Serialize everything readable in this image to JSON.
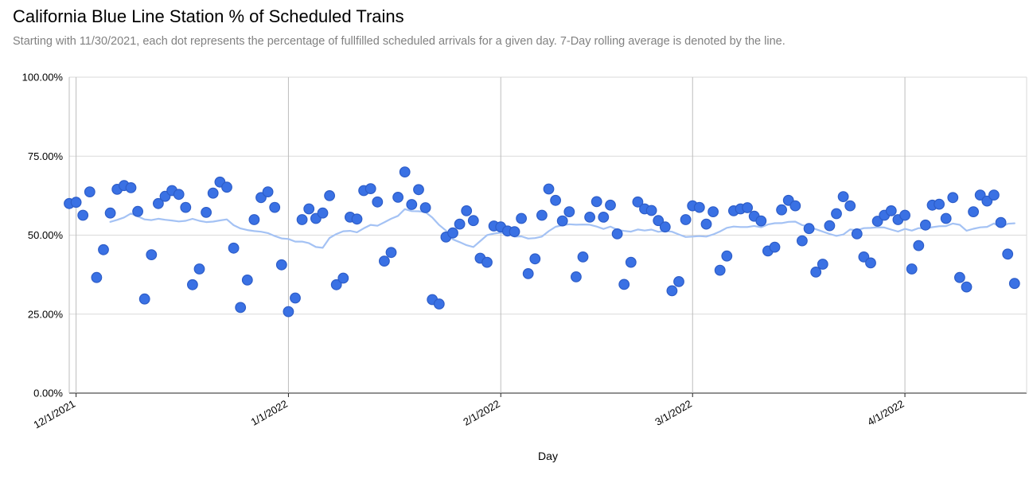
{
  "chart_data": {
    "type": "scatter",
    "title": "California Blue Line Station % of Scheduled Trains",
    "subtitle": "Starting with 11/30/2021, each dot represents the percentage of fullfilled scheduled arrivals for a given day. 7-Day rolling average is denoted by the line.",
    "xlabel": "Day",
    "ylabel": "",
    "ylim": [
      0,
      100
    ],
    "grid": true,
    "legend_position": "none",
    "y_ticks": [
      {
        "label": "0.00%",
        "value": 0
      },
      {
        "label": "25.00%",
        "value": 25
      },
      {
        "label": "50.00%",
        "value": 50
      },
      {
        "label": "75.00%",
        "value": 75
      },
      {
        "label": "100.00%",
        "value": 100
      }
    ],
    "x_ticks": [
      {
        "label": "12/1/2021",
        "day_index": 1
      },
      {
        "label": "1/1/2022",
        "day_index": 32
      },
      {
        "label": "2/1/2022",
        "day_index": 63
      },
      {
        "label": "3/1/2022",
        "day_index": 91
      },
      {
        "label": "4/1/2022",
        "day_index": 122
      }
    ],
    "colors": {
      "dot": "#3A71E4",
      "dot_border": "#2D5DC8",
      "line": "#A4C2F4",
      "gridline": "#DADADA",
      "month_gridline": "#BDBDBD",
      "axis_baseline": "#222222",
      "title": "#000000",
      "subtitle": "#818181",
      "tick_label": "#000000"
    },
    "series": [
      {
        "name": "Daily % of fulfilled scheduled arrivals",
        "type": "scatter",
        "color": "#3A71E4",
        "dot_border": "#2D5DC8",
        "dates": [
          "11/30/2021",
          "12/1/2021",
          "12/2/2021",
          "12/3/2021",
          "12/4/2021",
          "12/5/2021",
          "12/6/2021",
          "12/7/2021",
          "12/8/2021",
          "12/9/2021",
          "12/10/2021",
          "12/11/2021",
          "12/12/2021",
          "12/13/2021",
          "12/14/2021",
          "12/15/2021",
          "12/16/2021",
          "12/17/2021",
          "12/18/2021",
          "12/19/2021",
          "12/20/2021",
          "12/21/2021",
          "12/22/2021",
          "12/23/2021",
          "12/24/2021",
          "12/25/2021",
          "12/26/2021",
          "12/27/2021",
          "12/28/2021",
          "12/29/2021",
          "12/30/2021",
          "12/31/2021",
          "1/1/2022",
          "1/2/2022",
          "1/3/2022",
          "1/4/2022",
          "1/5/2022",
          "1/6/2022",
          "1/7/2022",
          "1/8/2022",
          "1/9/2022",
          "1/10/2022",
          "1/11/2022",
          "1/12/2022",
          "1/13/2022",
          "1/14/2022",
          "1/15/2022",
          "1/16/2022",
          "1/17/2022",
          "1/18/2022",
          "1/19/2022",
          "1/20/2022",
          "1/21/2022",
          "1/22/2022",
          "1/23/2022",
          "1/24/2022",
          "1/25/2022",
          "1/26/2022",
          "1/27/2022",
          "1/28/2022",
          "1/29/2022",
          "1/30/2022",
          "1/31/2022",
          "2/1/2022",
          "2/2/2022",
          "2/3/2022",
          "2/4/2022",
          "2/5/2022",
          "2/6/2022",
          "2/7/2022",
          "2/8/2022",
          "2/9/2022",
          "2/10/2022",
          "2/11/2022",
          "2/12/2022",
          "2/13/2022",
          "2/14/2022",
          "2/15/2022",
          "2/16/2022",
          "2/17/2022",
          "2/18/2022",
          "2/19/2022",
          "2/20/2022",
          "2/21/2022",
          "2/22/2022",
          "2/23/2022",
          "2/24/2022",
          "2/25/2022",
          "2/26/2022",
          "2/27/2022",
          "2/28/2022",
          "3/1/2022",
          "3/2/2022",
          "3/3/2022",
          "3/4/2022",
          "3/5/2022",
          "3/6/2022",
          "3/7/2022",
          "3/8/2022",
          "3/9/2022",
          "3/10/2022",
          "3/11/2022",
          "3/12/2022",
          "3/13/2022",
          "3/14/2022",
          "3/15/2022",
          "3/16/2022",
          "3/17/2022",
          "3/18/2022",
          "3/19/2022",
          "3/20/2022",
          "3/21/2022",
          "3/22/2022",
          "3/23/2022",
          "3/24/2022",
          "3/25/2022",
          "3/26/2022",
          "3/27/2022",
          "3/28/2022",
          "3/29/2022",
          "3/30/2022",
          "3/31/2022",
          "4/1/2022",
          "4/2/2022",
          "4/3/2022",
          "4/4/2022",
          "4/5/2022",
          "4/6/2022",
          "4/7/2022",
          "4/8/2022",
          "4/9/2022",
          "4/10/2022",
          "4/11/2022",
          "4/12/2022",
          "4/13/2022",
          "4/14/2022",
          "4/15/2022",
          "4/16/2022",
          "4/17/2022"
        ],
        "values": [
          60.0,
          60.4,
          56.3,
          63.7,
          36.6,
          45.4,
          57.0,
          64.5,
          65.7,
          65.0,
          57.5,
          29.8,
          43.8,
          60.0,
          62.3,
          64.1,
          62.9,
          58.8,
          34.3,
          39.3,
          57.2,
          63.3,
          66.8,
          65.2,
          45.9,
          27.1,
          35.8,
          54.9,
          61.9,
          63.7,
          58.8,
          40.6,
          25.8,
          30.1,
          54.9,
          58.3,
          55.3,
          57.0,
          62.5,
          34.3,
          36.4,
          55.7,
          55.1,
          64.1,
          64.7,
          60.5,
          41.8,
          44.5,
          62.0,
          70.0,
          59.7,
          64.4,
          58.7,
          29.6,
          28.2,
          49.4,
          50.7,
          53.5,
          57.7,
          54.6,
          42.7,
          41.4,
          52.9,
          52.6,
          51.3,
          51.1,
          55.3,
          37.8,
          42.5,
          56.3,
          64.6,
          61.0,
          54.5,
          57.4,
          36.8,
          43.1,
          55.7,
          60.6,
          55.7,
          59.5,
          50.4,
          34.4,
          41.4,
          60.5,
          58.3,
          57.8,
          54.6,
          52.6,
          32.4,
          35.3,
          54.9,
          59.3,
          58.8,
          53.5,
          57.4,
          38.9,
          43.4,
          57.7,
          58.3,
          58.7,
          56.0,
          54.5,
          45.0,
          46.2,
          58.0,
          61.0,
          59.3,
          48.2,
          52.1,
          38.3,
          40.8,
          53.0,
          56.8,
          62.2,
          59.3,
          50.4,
          43.1,
          41.2,
          54.4,
          56.3,
          57.7,
          54.9,
          56.3,
          39.3,
          46.7,
          53.2,
          59.5,
          59.8,
          55.3,
          61.9,
          36.6,
          33.6,
          57.4,
          62.7,
          60.8,
          62.7,
          54.0,
          44.0,
          34.7
        ]
      },
      {
        "name": "7-Day rolling average",
        "type": "line",
        "color": "#A4C2F4",
        "derived": "trailing 7-day mean of the daily values, plotted from the 7th day onward"
      }
    ]
  }
}
